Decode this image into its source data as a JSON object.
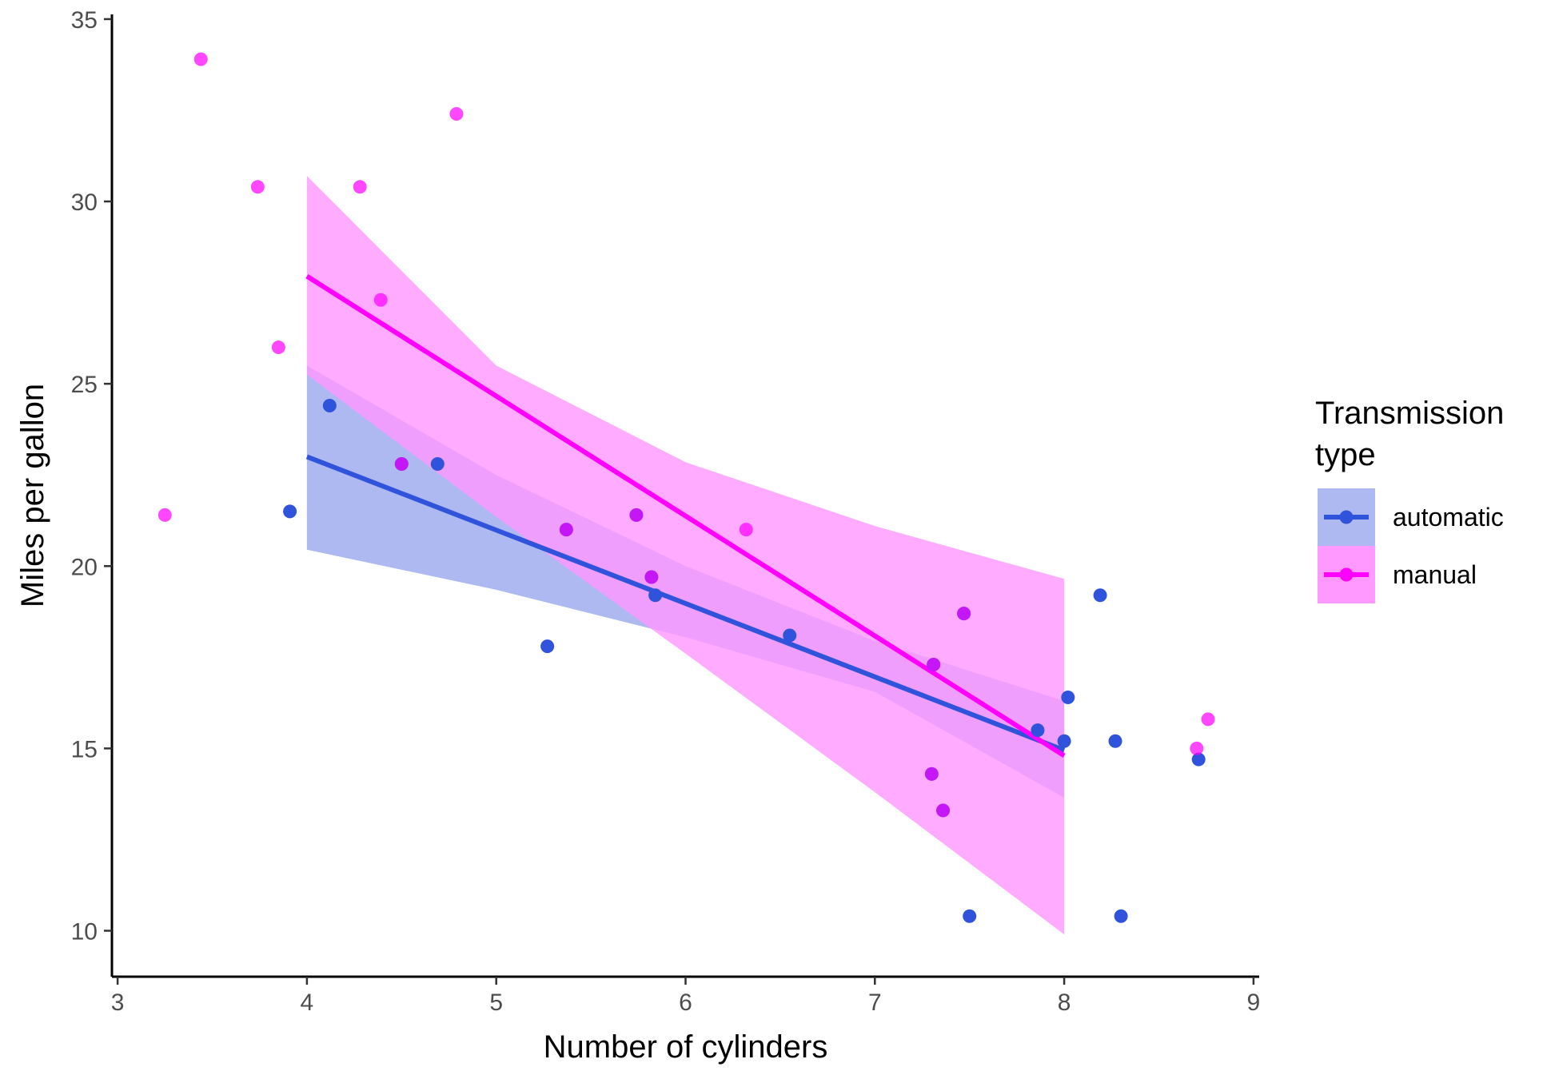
{
  "chart_data": {
    "type": "scatter",
    "title": "",
    "xlabel": "Number of cylinders",
    "ylabel": "Miles per gallon",
    "xlim": [
      2.97,
      9.03
    ],
    "ylim": [
      8.74,
      35.13
    ],
    "x_ticks": [
      3,
      4,
      5,
      6,
      7,
      8,
      9
    ],
    "y_ticks": [
      10,
      15,
      20,
      25,
      30,
      35
    ],
    "grid": false,
    "legend": {
      "title_lines": [
        "Transmission",
        "type"
      ],
      "placement": "right"
    },
    "series": [
      {
        "name": "automatic",
        "color": "#3053dc",
        "band_color": "#aeb8f1",
        "points": [
          {
            "x": 3.91,
            "y": 21.5
          },
          {
            "x": 4.12,
            "y": 24.4
          },
          {
            "x": 4.69,
            "y": 22.8
          },
          {
            "x": 5.27,
            "y": 17.8
          },
          {
            "x": 5.84,
            "y": 19.2
          },
          {
            "x": 6.55,
            "y": 18.1
          },
          {
            "x": 7.5,
            "y": 10.4
          },
          {
            "x": 7.86,
            "y": 15.5
          },
          {
            "x": 8.0,
            "y": 15.2
          },
          {
            "x": 8.02,
            "y": 16.4
          },
          {
            "x": 8.19,
            "y": 19.2
          },
          {
            "x": 8.27,
            "y": 15.2
          },
          {
            "x": 8.3,
            "y": 10.4
          },
          {
            "x": 8.71,
            "y": 14.7
          },
          {
            "x": 4.5,
            "y": 22.8
          },
          {
            "x": 5.37,
            "y": 21.0
          },
          {
            "x": 5.74,
            "y": 21.4
          },
          {
            "x": 5.82,
            "y": 19.7
          },
          {
            "x": 7.3,
            "y": 14.3
          },
          {
            "x": 7.31,
            "y": 17.3
          },
          {
            "x": 7.36,
            "y": 13.3
          },
          {
            "x": 7.47,
            "y": 18.7
          }
        ],
        "fit": {
          "x": [
            4,
            8
          ],
          "y": [
            23.0,
            14.95
          ]
        },
        "band": {
          "x": [
            4,
            5,
            6,
            7,
            8
          ],
          "lower": [
            20.45,
            19.35,
            18.05,
            16.55,
            13.65
          ],
          "upper": [
            25.5,
            22.5,
            20.0,
            17.95,
            16.3
          ]
        }
      },
      {
        "name": "manual",
        "color": "#ff00ff",
        "band_color": "#ff99ff",
        "points": [
          {
            "x": 3.25,
            "y": 21.4
          },
          {
            "x": 3.44,
            "y": 33.9
          },
          {
            "x": 3.74,
            "y": 30.4
          },
          {
            "x": 3.85,
            "y": 26.0
          },
          {
            "x": 4.28,
            "y": 30.4
          },
          {
            "x": 4.39,
            "y": 27.3
          },
          {
            "x": 4.79,
            "y": 32.4
          },
          {
            "x": 6.32,
            "y": 21.0
          },
          {
            "x": 8.7,
            "y": 15.0
          },
          {
            "x": 8.76,
            "y": 15.8
          },
          {
            "x": 4.5,
            "y": 22.8
          },
          {
            "x": 5.37,
            "y": 21.0
          },
          {
            "x": 5.74,
            "y": 21.4
          },
          {
            "x": 5.82,
            "y": 19.7
          },
          {
            "x": 7.3,
            "y": 14.3
          },
          {
            "x": 7.31,
            "y": 17.3
          },
          {
            "x": 7.36,
            "y": 13.3
          },
          {
            "x": 7.47,
            "y": 18.7
          }
        ],
        "fit": {
          "x": [
            4,
            8
          ],
          "y": [
            27.95,
            14.8
          ]
        },
        "band": {
          "x": [
            4,
            5,
            6,
            7,
            8
          ],
          "lower": [
            25.25,
            21.35,
            17.6,
            13.8,
            9.9
          ],
          "upper": [
            30.7,
            25.5,
            22.85,
            21.1,
            19.65
          ]
        }
      }
    ]
  }
}
